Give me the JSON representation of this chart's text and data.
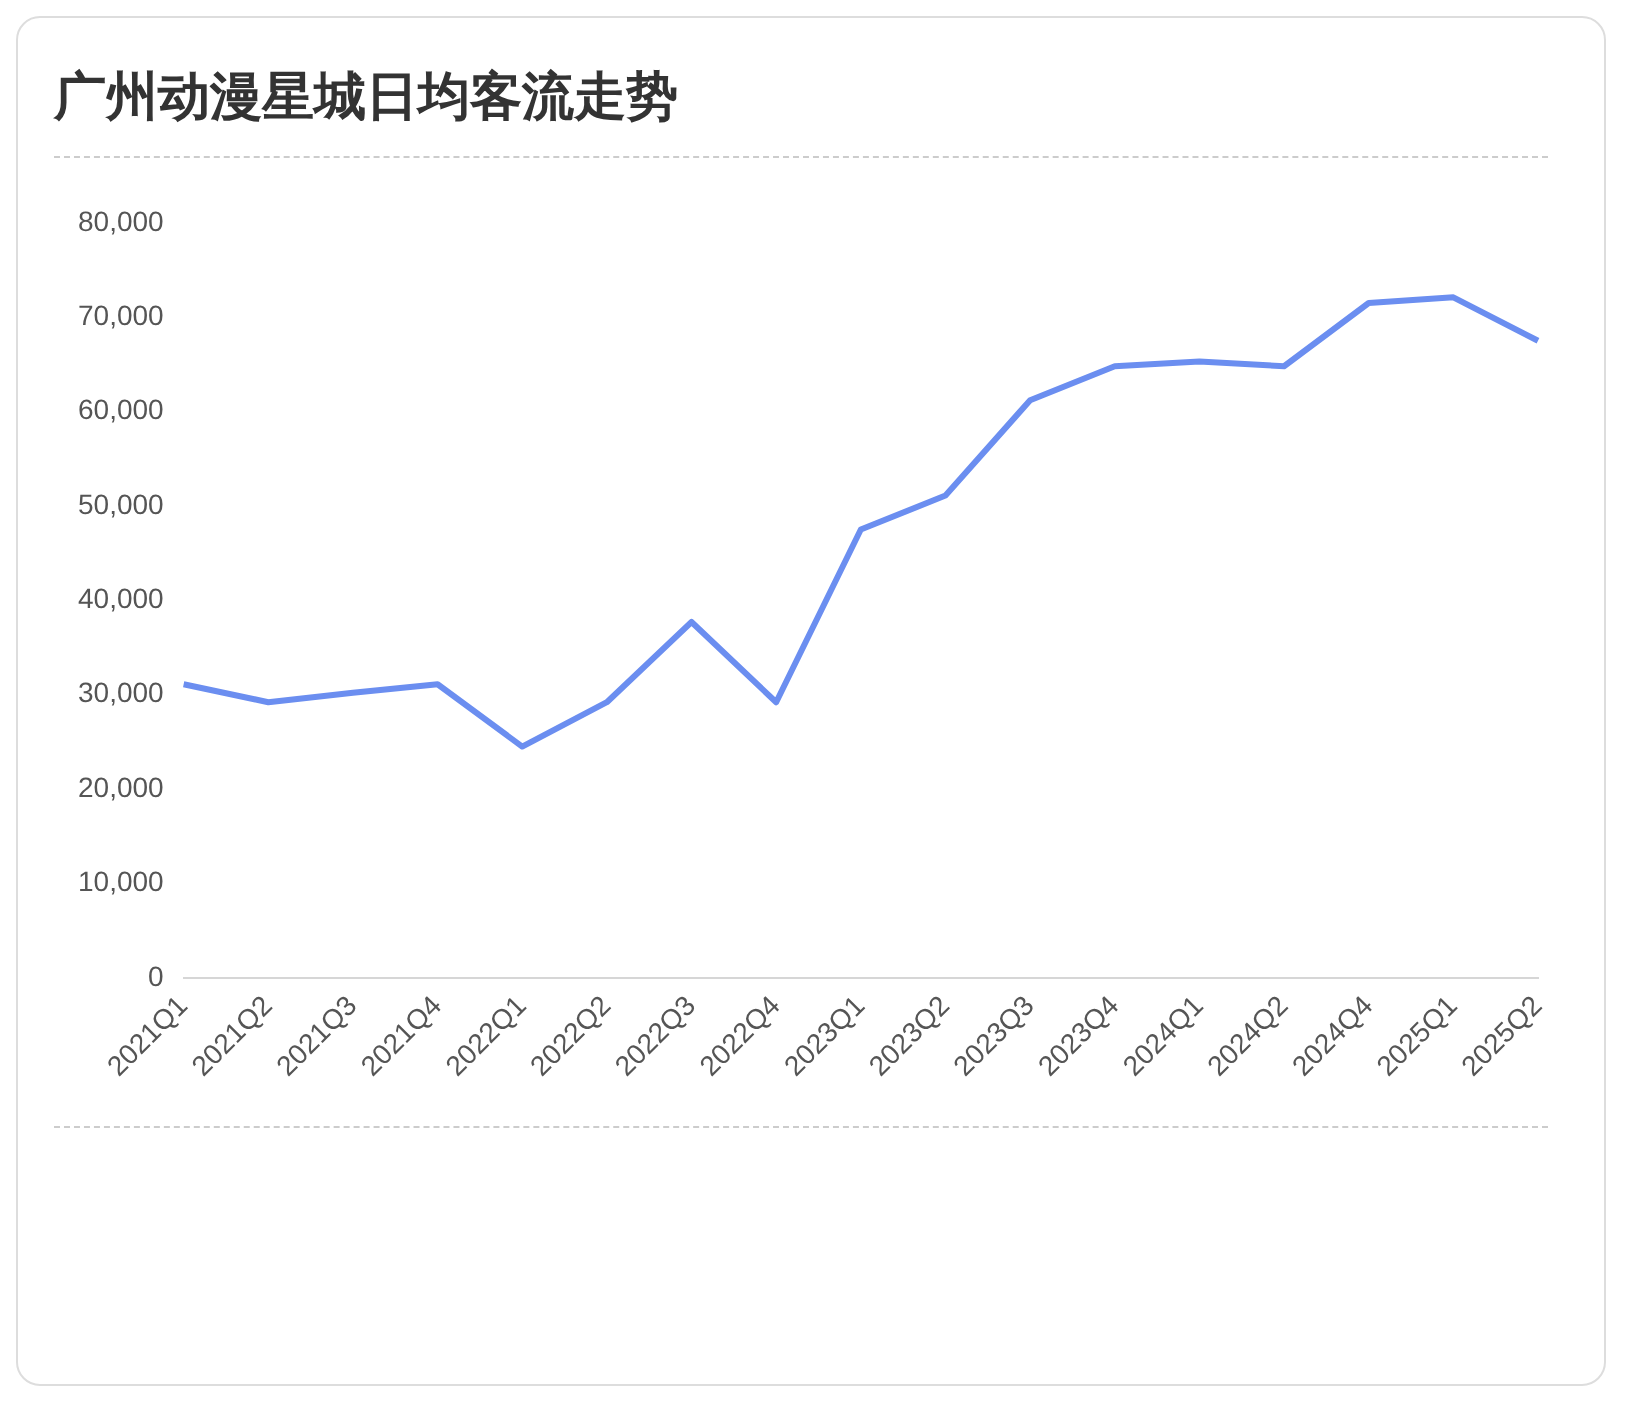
{
  "chart_data": {
    "type": "line",
    "title": "广州动漫星城日均客流走势",
    "categories": [
      "2021Q1",
      "2021Q2",
      "2021Q3",
      "2021Q4",
      "2022Q1",
      "2022Q2",
      "2022Q3",
      "2022Q4",
      "2023Q1",
      "2023Q2",
      "2023Q3",
      "2023Q4",
      "2024Q1",
      "2024Q2",
      "2024Q4",
      "2025Q1",
      "2025Q2"
    ],
    "series": [
      {
        "color": "#6b8ef0",
        "values": [
          31100,
          29200,
          30200,
          31100,
          24500,
          29200,
          37700,
          29200,
          47500,
          51100,
          61200,
          64800,
          65300,
          64800,
          71500,
          72100,
          67500
        ]
      }
    ],
    "ylim": [
      0,
      80000
    ],
    "yticks": [
      0,
      {
        "value": 10000,
        "label": "10,000"
      },
      {
        "value": 20000,
        "label": "20,000"
      },
      {
        "value": 30000,
        "label": "30,000"
      },
      {
        "value": 40000,
        "label": "40,000"
      },
      {
        "value": 50000,
        "label": "50,000"
      },
      {
        "value": 60000,
        "label": "60,000"
      },
      {
        "value": 70000,
        "label": "70,000"
      },
      {
        "value": 80000,
        "label": "80,000"
      }
    ],
    "grid": false,
    "legend": false,
    "marker": "none",
    "line_style": "solid"
  }
}
